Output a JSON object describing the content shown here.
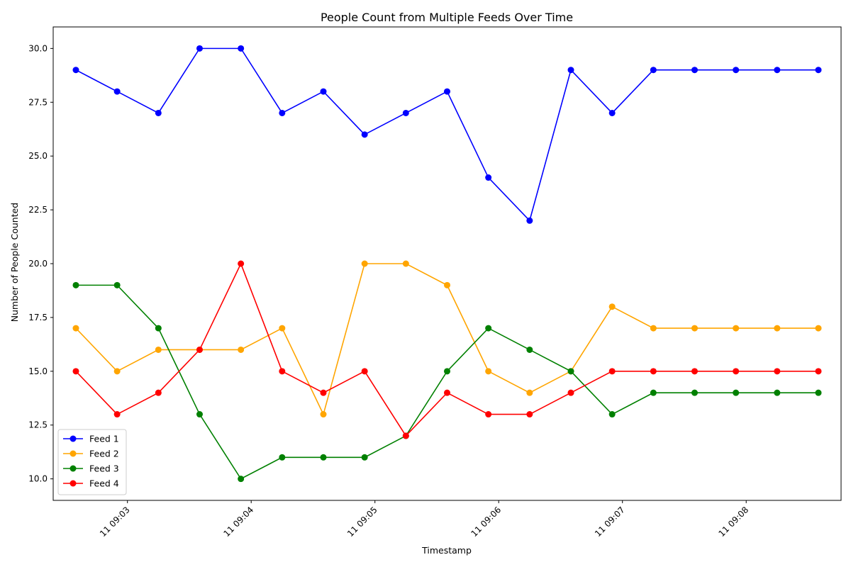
{
  "chart_data": {
    "type": "line",
    "title": "People Count from Multiple Feeds Over Time",
    "xlabel": "Timestamp",
    "ylabel": "Number of People Counted",
    "x": [
      "09:02:35",
      "09:02:55",
      "09:03:15",
      "09:03:35",
      "09:03:55",
      "09:04:15",
      "09:04:35",
      "09:04:55",
      "09:05:15",
      "09:05:35",
      "09:05:55",
      "09:06:15",
      "09:06:35",
      "09:06:55",
      "09:07:15",
      "09:07:35",
      "09:07:55",
      "09:08:15",
      "09:08:35"
    ],
    "x_ticks": [
      {
        "time": "09:03:00",
        "label": "11 09:03"
      },
      {
        "time": "09:04:00",
        "label": "11 09:04"
      },
      {
        "time": "09:05:00",
        "label": "11 09:05"
      },
      {
        "time": "09:06:00",
        "label": "11 09:06"
      },
      {
        "time": "09:07:00",
        "label": "11 09:07"
      },
      {
        "time": "09:08:00",
        "label": "11 09:08"
      }
    ],
    "x_range": [
      "09:02:24",
      "09:08:46"
    ],
    "ylim": [
      9.0,
      31.0
    ],
    "y_ticks": [
      10.0,
      12.5,
      15.0,
      17.5,
      20.0,
      22.5,
      25.0,
      27.5,
      30.0
    ],
    "y_tick_labels": [
      "10.0",
      "12.5",
      "15.0",
      "17.5",
      "20.0",
      "22.5",
      "25.0",
      "27.5",
      "30.0"
    ],
    "grid": false,
    "legend_position": "lower-left",
    "series": [
      {
        "name": "Feed 1",
        "color": "#0000ff",
        "values": [
          29,
          28,
          27,
          30,
          30,
          27,
          28,
          26,
          27,
          28,
          24,
          22,
          29,
          27,
          29,
          29,
          29,
          29,
          29
        ]
      },
      {
        "name": "Feed 2",
        "color": "#ffa500",
        "values": [
          17,
          15,
          16,
          16,
          16,
          17,
          13,
          20,
          20,
          19,
          15,
          14,
          15,
          18,
          17,
          17,
          17,
          17,
          17
        ]
      },
      {
        "name": "Feed 3",
        "color": "#008000",
        "values": [
          19,
          19,
          17,
          13,
          10,
          11,
          11,
          11,
          12,
          15,
          17,
          16,
          15,
          13,
          14,
          14,
          14,
          14,
          14
        ]
      },
      {
        "name": "Feed 4",
        "color": "#ff0000",
        "values": [
          15,
          13,
          14,
          16,
          20,
          15,
          14,
          15,
          12,
          14,
          13,
          13,
          14,
          15,
          15,
          15,
          15,
          15,
          15
        ]
      }
    ]
  }
}
